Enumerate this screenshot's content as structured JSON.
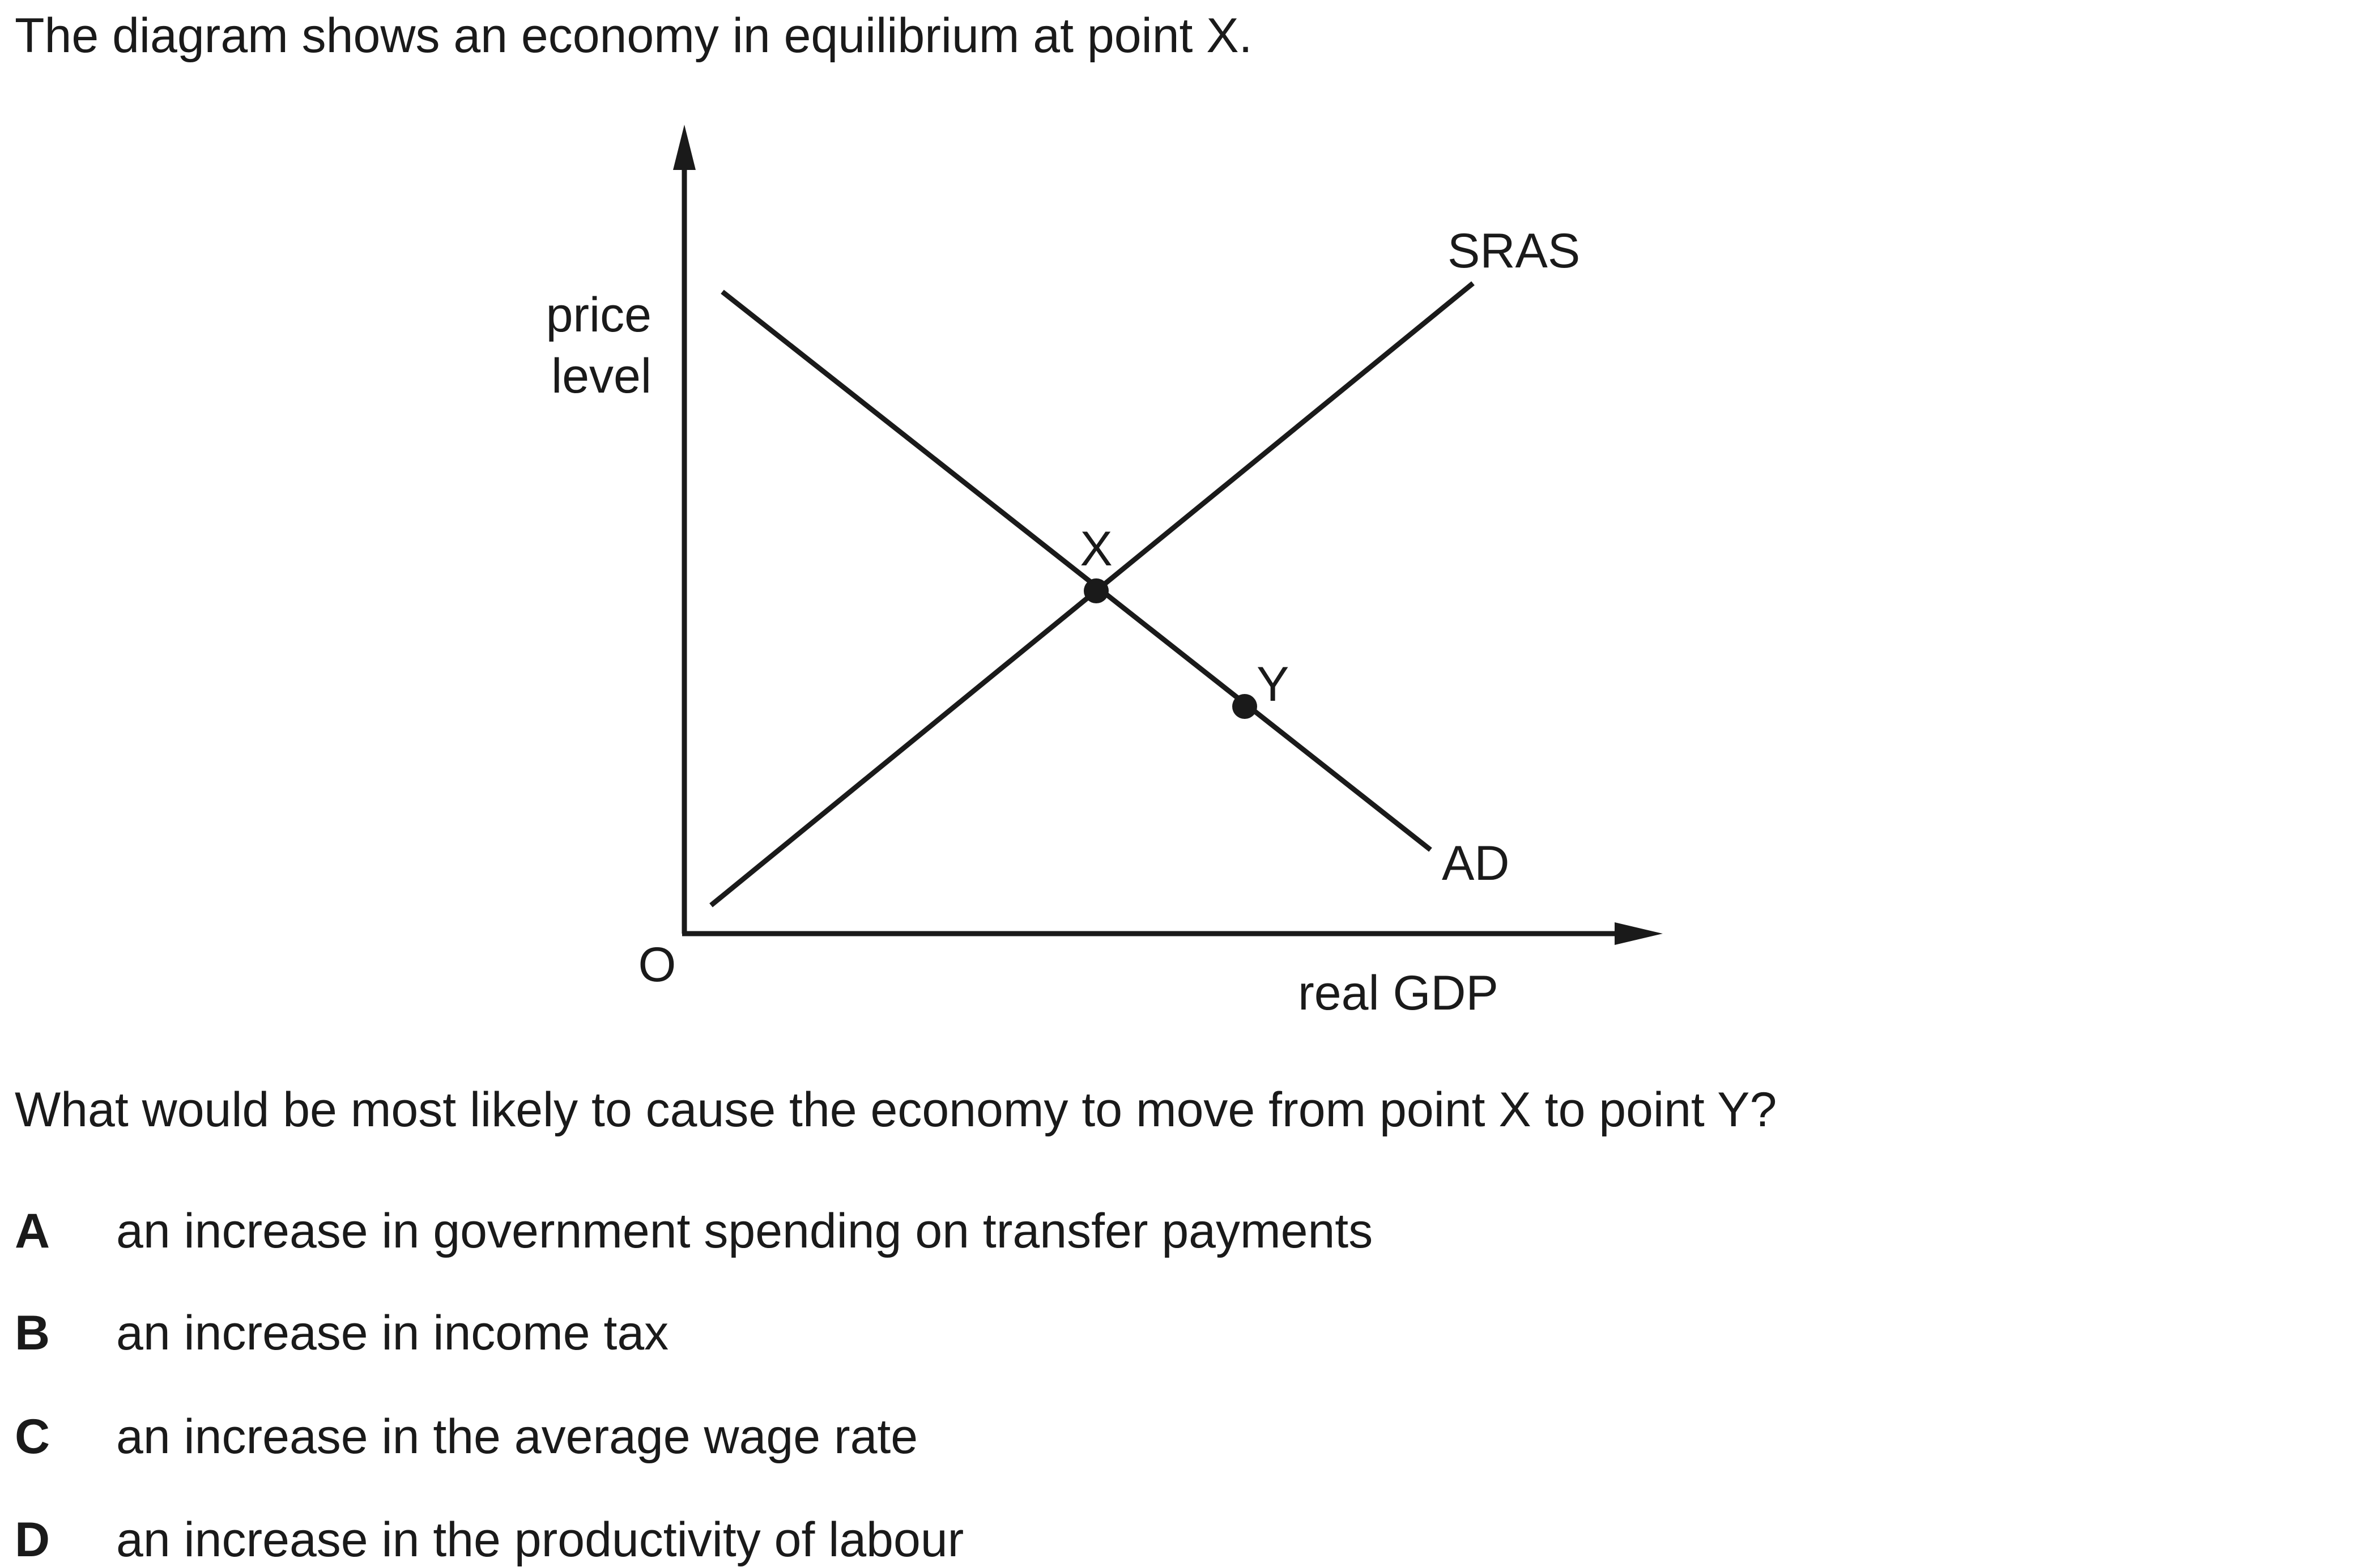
{
  "intro": "The diagram shows an economy in equilibrium at point X.",
  "diagram": {
    "y_axis_label_line1": "price",
    "y_axis_label_line2": "level",
    "x_axis_label": "real GDP",
    "origin_label": "O",
    "curve_sras": "SRAS",
    "curve_ad": "AD",
    "point_x": "X",
    "point_y": "Y"
  },
  "question": "What would be most likely to cause the economy to move from point X to point Y?",
  "options": [
    {
      "letter": "A",
      "text": "an increase in government spending on transfer payments"
    },
    {
      "letter": "B",
      "text": "an increase in income tax"
    },
    {
      "letter": "C",
      "text": "an increase in the average wage rate"
    },
    {
      "letter": "D",
      "text": "an increase in the productivity of labour"
    }
  ]
}
